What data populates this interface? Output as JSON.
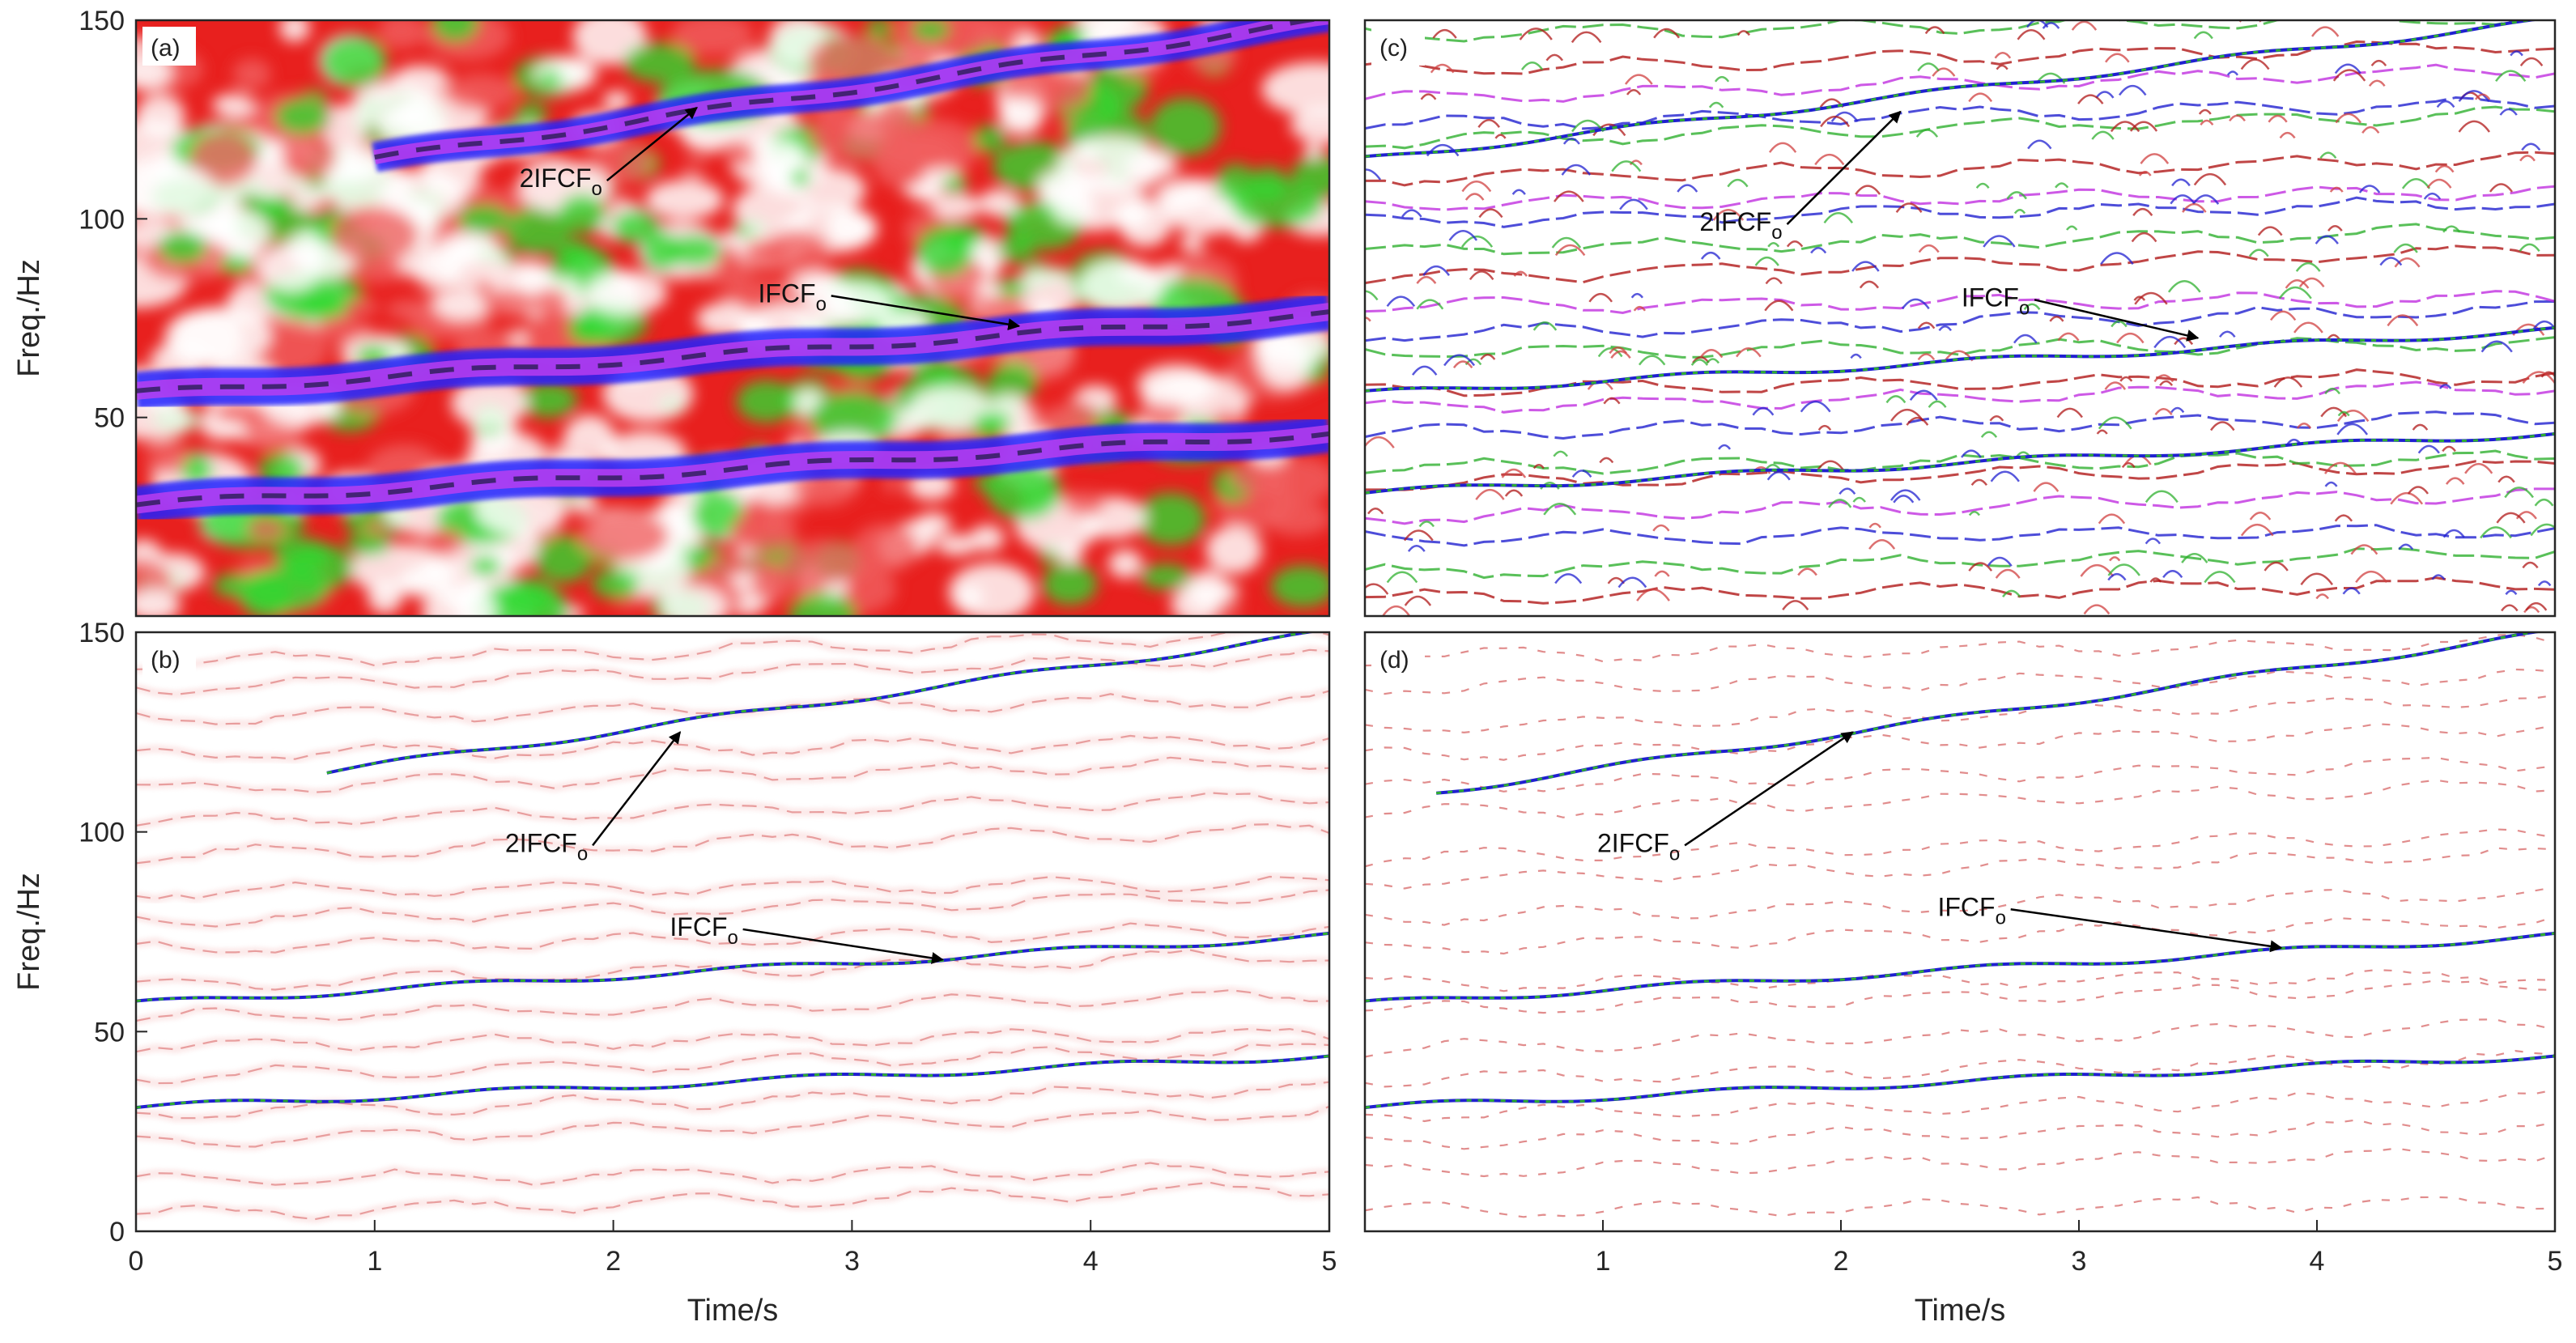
{
  "chart_data": [
    {
      "panel": "(a)",
      "type": "heatmap",
      "xlim": [
        0,
        5
      ],
      "ylim": [
        0,
        150
      ],
      "yticks": [
        50,
        100,
        150
      ],
      "xticks": [],
      "ylabel": "Freq./Hz",
      "xlabel": "",
      "show_xtick_labels": false,
      "show_ytick_labels": true,
      "grid": false,
      "colors": {
        "background": "#e8201e",
        "mid": "#2fd82f",
        "high": "#2020ff",
        "peak": "#c040f0",
        "ridge": "#1a1a40",
        "light": "#ffffff"
      },
      "style": "energy",
      "ridges": [
        {
          "t_start": 0.0,
          "t_end": 5.0,
          "f_start": 28,
          "f_end": 46,
          "strength": 1.0
        },
        {
          "t_start": 0.0,
          "t_end": 5.0,
          "f_start": 56,
          "f_end": 76,
          "strength": 1.0
        },
        {
          "t_start": 1.0,
          "t_end": 5.0,
          "f_start": 115,
          "f_end": 150,
          "strength": 0.8
        }
      ],
      "annotations": [
        {
          "text": "2IFCF",
          "sub": "o",
          "text_t": 1.78,
          "text_f": 108,
          "arrow_t": 2.35,
          "arrow_f": 128
        },
        {
          "text": "IFCF",
          "sub": "o",
          "text_t": 2.75,
          "text_f": 79,
          "arrow_t": 3.7,
          "arrow_f": 73
        }
      ]
    },
    {
      "panel": "(b)",
      "type": "heatmap",
      "xlim": [
        0,
        5
      ],
      "ylim": [
        0,
        150
      ],
      "yticks": [
        0,
        50,
        100,
        150
      ],
      "xticks": [
        0,
        1,
        2,
        3,
        4,
        5
      ],
      "ylabel": "Freq./Hz",
      "xlabel": "Time/s",
      "show_xtick_labels": true,
      "show_ytick_labels": true,
      "grid": false,
      "colors": {
        "line": "#a01818",
        "halo": "#f5c0c0",
        "accent1": "#2fb02f",
        "accent2": "#2020d0"
      },
      "style": "sparse",
      "ridges": [
        {
          "t_start": 0.0,
          "t_end": 5.0,
          "f_start": 31,
          "f_end": 44,
          "strength": 1.0
        },
        {
          "t_start": 0.0,
          "t_end": 5.0,
          "f_start": 57,
          "f_end": 74,
          "strength": 1.0
        },
        {
          "t_start": 0.8,
          "t_end": 5.0,
          "f_start": 115,
          "f_end": 150,
          "strength": 0.9
        }
      ],
      "annotations": [
        {
          "text": "2IFCF",
          "sub": "o",
          "text_t": 1.72,
          "text_f": 95,
          "arrow_t": 2.28,
          "arrow_f": 125
        },
        {
          "text": "IFCF",
          "sub": "o",
          "text_t": 2.38,
          "text_f": 74,
          "arrow_t": 3.38,
          "arrow_f": 68
        }
      ]
    },
    {
      "panel": "(c)",
      "type": "heatmap",
      "xlim": [
        0,
        5
      ],
      "ylim": [
        0,
        150
      ],
      "yticks": [],
      "xticks": [],
      "ylabel": "",
      "xlabel": "",
      "show_xtick_labels": false,
      "show_ytick_labels": false,
      "grid": false,
      "colors": {
        "line": "#b01818",
        "accent1": "#2fb02f",
        "accent2": "#2020d0",
        "accent3": "#c030e0"
      },
      "style": "dense",
      "ridges": [
        {
          "t_start": 0.0,
          "t_end": 5.0,
          "f_start": 31,
          "f_end": 46,
          "strength": 1.0
        },
        {
          "t_start": 0.0,
          "t_end": 5.0,
          "f_start": 56,
          "f_end": 72,
          "strength": 1.0
        },
        {
          "t_start": 0.0,
          "t_end": 5.0,
          "f_start": 115,
          "f_end": 150,
          "strength": 1.0
        }
      ],
      "annotations": [
        {
          "text": "2IFCF",
          "sub": "o",
          "text_t": 1.58,
          "text_f": 97,
          "arrow_t": 2.25,
          "arrow_f": 127
        },
        {
          "text": "IFCF",
          "sub": "o",
          "text_t": 2.65,
          "text_f": 78,
          "arrow_t": 3.5,
          "arrow_f": 70
        }
      ]
    },
    {
      "panel": "(d)",
      "type": "heatmap",
      "xlim": [
        0,
        5
      ],
      "ylim": [
        0,
        150
      ],
      "yticks": [],
      "xticks": [
        1,
        2,
        3,
        4,
        5
      ],
      "ylabel": "",
      "xlabel": "Time/s",
      "show_xtick_labels": true,
      "show_ytick_labels": false,
      "grid": false,
      "colors": {
        "line": "#a01818",
        "halo": "#f8d0d0",
        "accent1": "#2fb02f",
        "accent2": "#2020d0"
      },
      "style": "clean",
      "ridges": [
        {
          "t_start": 0.0,
          "t_end": 5.0,
          "f_start": 31,
          "f_end": 44,
          "strength": 1.0
        },
        {
          "t_start": 0.0,
          "t_end": 5.0,
          "f_start": 57,
          "f_end": 74,
          "strength": 1.0
        },
        {
          "t_start": 0.3,
          "t_end": 5.0,
          "f_start": 110,
          "f_end": 150,
          "strength": 0.9
        }
      ],
      "annotations": [
        {
          "text": "2IFCF",
          "sub": "o",
          "text_t": 1.15,
          "text_f": 95,
          "arrow_t": 2.05,
          "arrow_f": 125
        },
        {
          "text": "IFCF",
          "sub": "o",
          "text_t": 2.55,
          "text_f": 79,
          "arrow_t": 3.85,
          "arrow_f": 71
        }
      ]
    }
  ]
}
